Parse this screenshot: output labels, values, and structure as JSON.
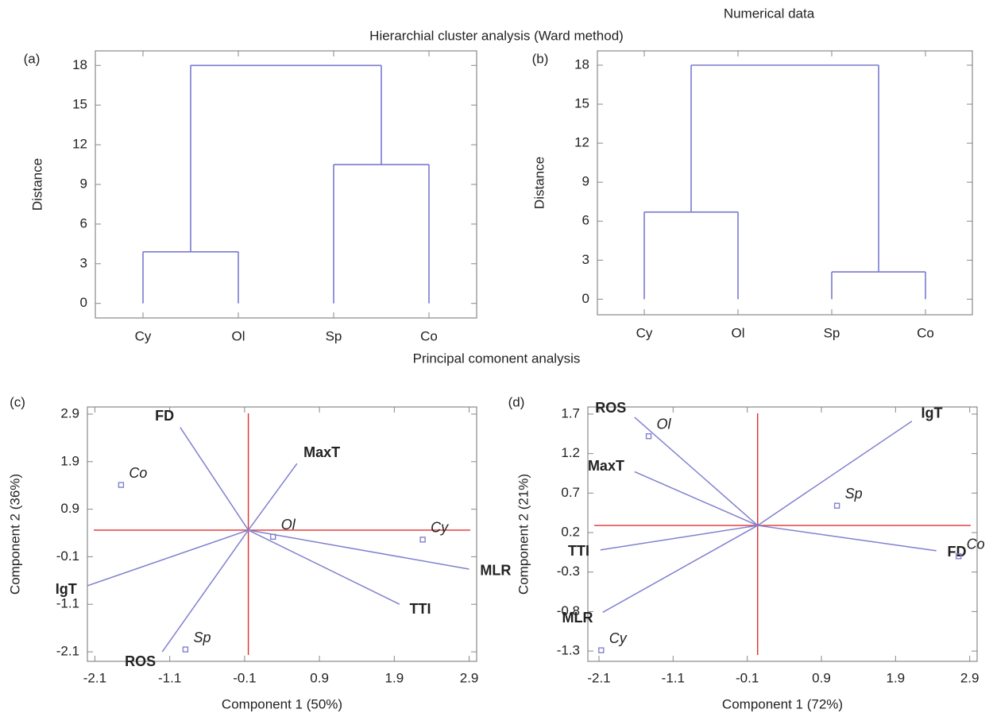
{
  "headers": {
    "numerical": "Numerical data",
    "cluster": "Hierarchial cluster analysis (Ward method)",
    "pca": "Principal comonent analysis"
  },
  "chart_data": [
    {
      "type": "dendrogram",
      "panel_label": "(a)",
      "ylabel": "Distance",
      "categories": [
        "Cy",
        "Ol",
        "Sp",
        "Co"
      ],
      "merges": [
        {
          "members": [
            "Cy",
            "Ol"
          ],
          "height": 3.9
        },
        {
          "members": [
            "Sp",
            "Co"
          ],
          "height": 10.5
        },
        {
          "members": [
            "Cy",
            "Ol",
            "Sp",
            "Co"
          ],
          "height": 18
        }
      ],
      "ylim": [
        -1.1,
        19.1
      ],
      "yticks": [
        0,
        3,
        6,
        9,
        12,
        15,
        18
      ],
      "color": "#7a7ad0"
    },
    {
      "type": "dendrogram",
      "panel_label": "(b)",
      "ylabel": "Distance",
      "categories": [
        "Cy",
        "Ol",
        "Sp",
        "Co"
      ],
      "merges": [
        {
          "members": [
            "Cy",
            "Ol"
          ],
          "height": 6.7
        },
        {
          "members": [
            "Sp",
            "Co"
          ],
          "height": 2.1
        },
        {
          "members": [
            "Cy",
            "Ol",
            "Sp",
            "Co"
          ],
          "height": 18
        }
      ],
      "ylim": [
        -1.2,
        19.1
      ],
      "yticks": [
        0,
        3,
        6,
        9,
        12,
        15,
        18
      ],
      "color": "#7a7ad0"
    },
    {
      "type": "biplot",
      "panel_label": "(c)",
      "xlabel": "Component 1 (50%)",
      "ylabel": "Component 2 (36%)",
      "xlim": [
        -2.2,
        3.0
      ],
      "ylim": [
        -2.3,
        3.05
      ],
      "xticks": [
        -2.1,
        -1.1,
        -0.1,
        0.9,
        1.9,
        2.9
      ],
      "yticks": [
        -2.1,
        -1.1,
        -0.1,
        0.9,
        1.9,
        2.9
      ],
      "origin": [
        -0.05,
        0.46
      ],
      "vectors": [
        {
          "label": "FD",
          "x": -0.96,
          "y": 2.62
        },
        {
          "label": "MaxT",
          "x": 0.6,
          "y": 1.86
        },
        {
          "label": "MLR",
          "x": 2.9,
          "y": -0.36
        },
        {
          "label": "TTI",
          "x": 1.97,
          "y": -1.1
        },
        {
          "label": "IgT",
          "x": -2.2,
          "y": -0.71
        },
        {
          "label": "ROS",
          "x": -1.2,
          "y": -2.1
        }
      ],
      "points": [
        {
          "label": "Co",
          "x": -1.75,
          "y": 1.41
        },
        {
          "label": "Ol",
          "x": 0.28,
          "y": 0.32
        },
        {
          "label": "Cy",
          "x": 2.28,
          "y": 0.26
        },
        {
          "label": "Sp",
          "x": -0.89,
          "y": -2.05
        }
      ],
      "color": "#8080d0",
      "reference_color": "#e03030"
    },
    {
      "type": "biplot",
      "panel_label": "(d)",
      "xlabel": "Component 1 (72%)",
      "ylabel": "Component 2 (21%)",
      "xlim": [
        -2.25,
        3.0
      ],
      "ylim": [
        -1.43,
        1.79
      ],
      "xticks": [
        -2.1,
        -1.1,
        -0.1,
        0.9,
        1.9,
        2.9
      ],
      "yticks": [
        -1.3,
        -0.8,
        -0.3,
        0.2,
        0.7,
        1.2,
        1.7
      ],
      "origin": [
        0.04,
        0.29
      ],
      "vectors": [
        {
          "label": "IgT",
          "x": 2.12,
          "y": 1.61
        },
        {
          "label": "ROS",
          "x": -1.62,
          "y": 1.66
        },
        {
          "label": "MaxT",
          "x": -1.62,
          "y": 0.97
        },
        {
          "label": "FD",
          "x": 2.45,
          "y": -0.03
        },
        {
          "label": "TTI",
          "x": -2.08,
          "y": -0.02
        },
        {
          "label": "MLR",
          "x": -2.05,
          "y": -0.81
        }
      ],
      "points": [
        {
          "label": "Ol",
          "x": -1.43,
          "y": 1.42
        },
        {
          "label": "Sp",
          "x": 1.11,
          "y": 0.54
        },
        {
          "label": "Co",
          "x": 2.75,
          "y": -0.1
        },
        {
          "label": "Cy",
          "x": -2.07,
          "y": -1.29
        }
      ],
      "color": "#8080d0",
      "reference_color": "#e03030"
    }
  ]
}
